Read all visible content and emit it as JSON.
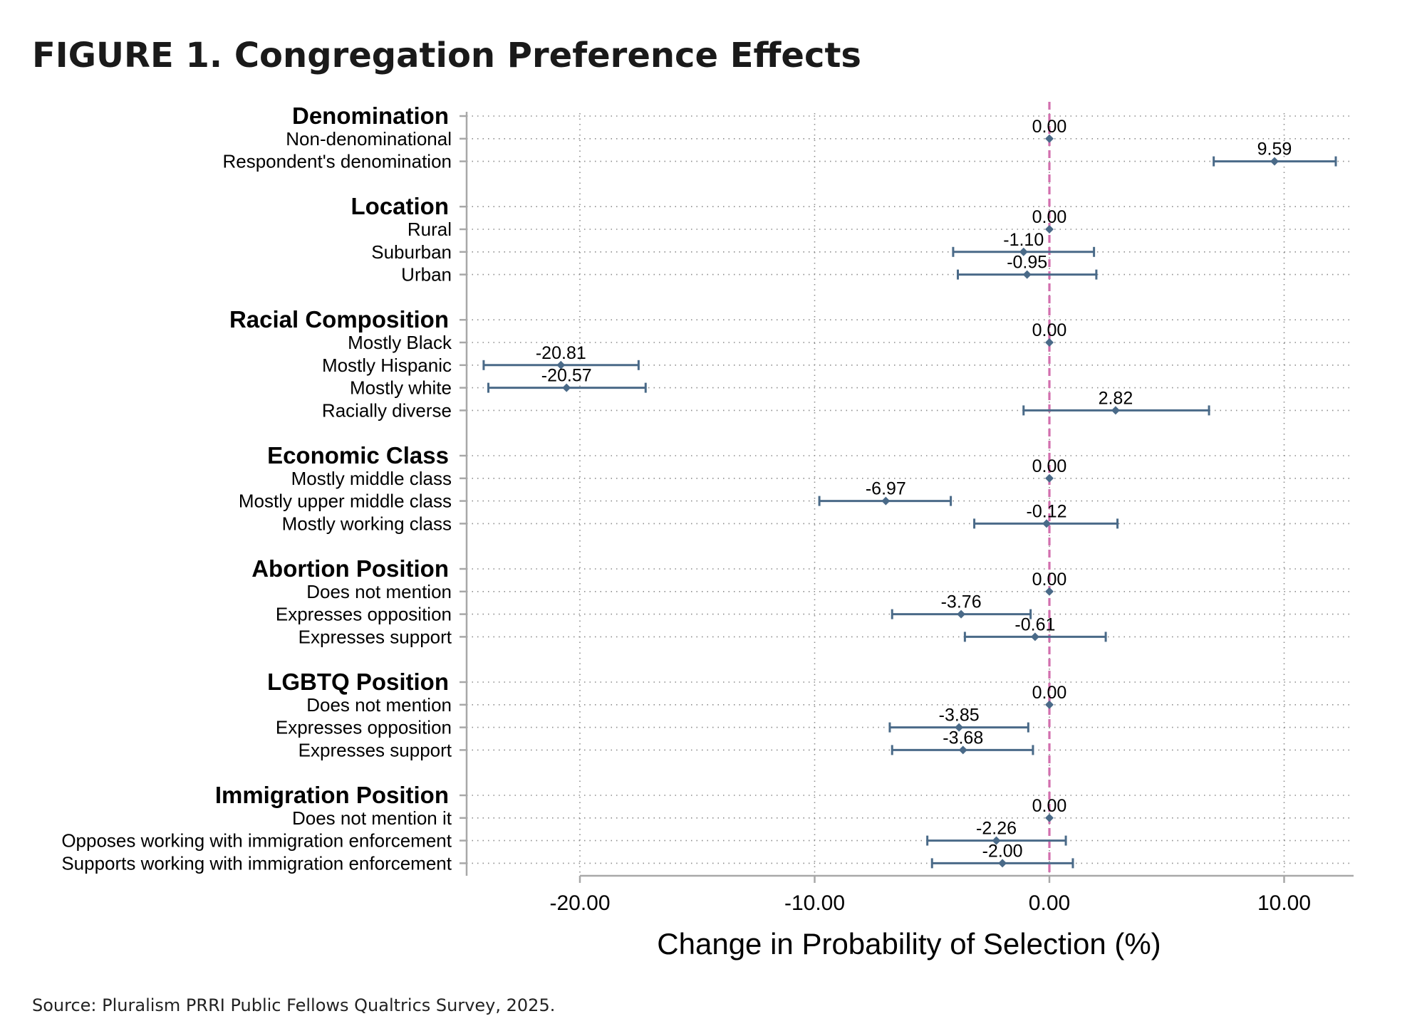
{
  "figure": {
    "title": "FIGURE 1.  Congregation Preference Effects",
    "source": "Source: Pluralism PRRI Public Fellows Qualtrics Survey, 2025."
  },
  "chart_data": {
    "type": "coefficient-plot",
    "xlabel": "Change in Probability of Selection (%)",
    "xticks": [
      -20,
      -10,
      0,
      10
    ],
    "xtick_labels": [
      "-20.00",
      "-10.00",
      "0.00",
      "10.00"
    ],
    "xlim": [
      -24.5,
      12.8
    ],
    "reference_line": 0,
    "grid": true,
    "colors": {
      "point": "#4a6a88",
      "reference": "#d26fae",
      "grid": "#8c8c8c",
      "axis": "#a8a8a8"
    },
    "groups": [
      {
        "name": "Denomination",
        "items": [
          {
            "label": "Non-denominational",
            "value": 0.0,
            "value_label": "0.00",
            "ci": null
          },
          {
            "label": "Respondent's denomination",
            "value": 9.59,
            "value_label": "9.59",
            "ci": [
              7.0,
              12.2
            ]
          }
        ]
      },
      {
        "name": "Location",
        "items": [
          {
            "label": "Rural",
            "value": 0.0,
            "value_label": "0.00",
            "ci": null
          },
          {
            "label": "Suburban",
            "value": -1.1,
            "value_label": "-1.10",
            "ci": [
              -4.1,
              1.9
            ]
          },
          {
            "label": "Urban",
            "value": -0.95,
            "value_label": "-0.95",
            "ci": [
              -3.9,
              2.0
            ]
          }
        ]
      },
      {
        "name": "Racial Composition",
        "items": [
          {
            "label": "Mostly Black",
            "value": 0.0,
            "value_label": "0.00",
            "ci": null
          },
          {
            "label": "Mostly Hispanic",
            "value": -20.81,
            "value_label": "-20.81",
            "ci": [
              -24.1,
              -17.5
            ]
          },
          {
            "label": "Mostly white",
            "value": -20.57,
            "value_label": "-20.57",
            "ci": [
              -23.9,
              -17.2
            ]
          },
          {
            "label": "Racially diverse",
            "value": 2.82,
            "value_label": "2.82",
            "ci": [
              -1.1,
              6.8
            ]
          }
        ]
      },
      {
        "name": "Economic Class",
        "items": [
          {
            "label": "Mostly middle class",
            "value": 0.0,
            "value_label": "0.00",
            "ci": null
          },
          {
            "label": "Mostly upper middle class",
            "value": -6.97,
            "value_label": "-6.97",
            "ci": [
              -9.8,
              -4.2
            ]
          },
          {
            "label": "Mostly working class",
            "value": -0.12,
            "value_label": "-0.12",
            "ci": [
              -3.2,
              2.9
            ]
          }
        ]
      },
      {
        "name": "Abortion Position",
        "items": [
          {
            "label": "Does not mention",
            "value": 0.0,
            "value_label": "0.00",
            "ci": null
          },
          {
            "label": "Expresses opposition",
            "value": -3.76,
            "value_label": "-3.76",
            "ci": [
              -6.7,
              -0.8
            ]
          },
          {
            "label": "Expresses support",
            "value": -0.61,
            "value_label": "-0.61",
            "ci": [
              -3.6,
              2.4
            ]
          }
        ]
      },
      {
        "name": "LGBTQ Position",
        "items": [
          {
            "label": "Does not mention",
            "value": 0.0,
            "value_label": "0.00",
            "ci": null
          },
          {
            "label": "Expresses opposition",
            "value": -3.85,
            "value_label": "-3.85",
            "ci": [
              -6.8,
              -0.9
            ]
          },
          {
            "label": "Expresses support",
            "value": -3.68,
            "value_label": "-3.68",
            "ci": [
              -6.7,
              -0.7
            ]
          }
        ]
      },
      {
        "name": "Immigration Position",
        "items": [
          {
            "label": "Does not mention it",
            "value": 0.0,
            "value_label": "0.00",
            "ci": null
          },
          {
            "label": "Opposes working with immigration enforcement",
            "value": -2.26,
            "value_label": "-2.26",
            "ci": [
              -5.2,
              0.7
            ]
          },
          {
            "label": "Supports working with immigration enforcement",
            "value": -2.0,
            "value_label": "-2.00",
            "ci": [
              -5.0,
              1.0
            ]
          }
        ]
      }
    ]
  }
}
